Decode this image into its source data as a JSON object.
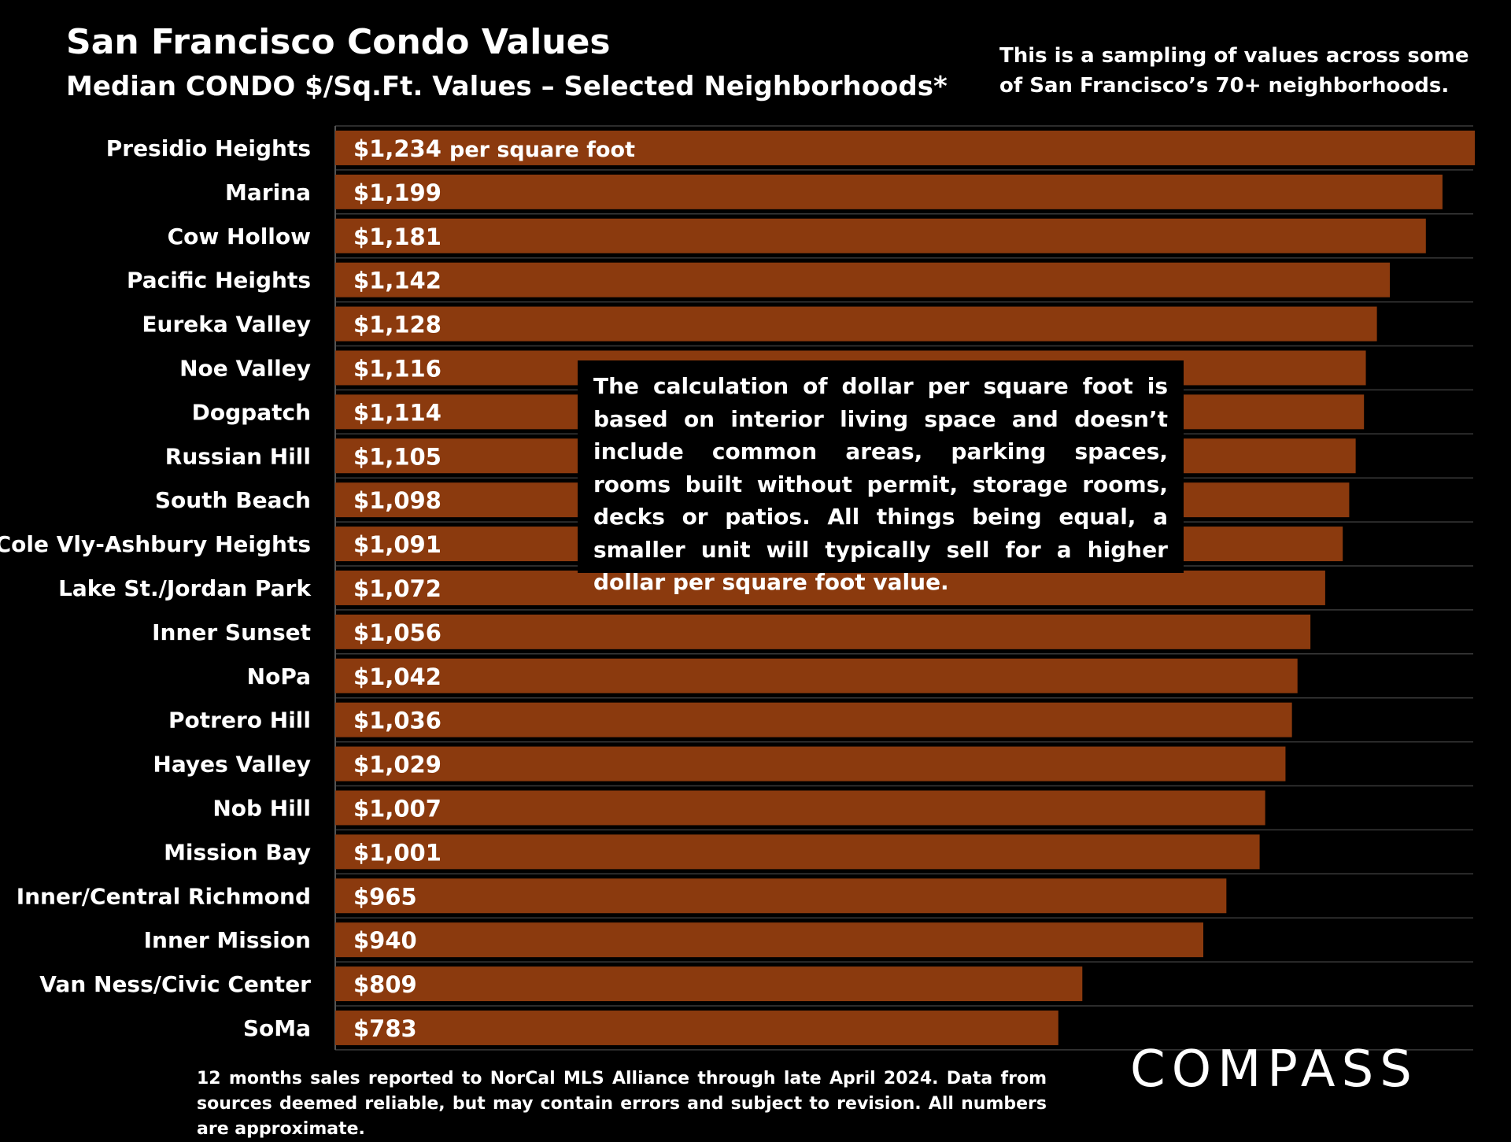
{
  "header": {
    "title": "San Francisco Condo Values",
    "subtitle": "Median CONDO $/Sq.Ft. Values – Selected Neighborhoods*",
    "note": "This is a sampling of values across some of San Francisco’s 70+ neighborhoods."
  },
  "callout": {
    "text": "The calculation of dollar per square foot is based on interior living space and doesn’t include common areas, parking spaces, rooms built without permit, storage rooms, decks or patios. All things being equal, a smaller unit will typically sell for a higher dollar per square foot value."
  },
  "footnote": "12 months sales reported to NorCal MLS Alliance through late April 2024. Data from sources deemed reliable, but may contain errors and subject to revision. All numbers are approximate.",
  "logo": "COMPASS",
  "colors": {
    "bar": "#8B3A0E",
    "background": "#000000",
    "text": "#FFFFFF",
    "grid": "#3a3a3a"
  },
  "chart_data": {
    "type": "bar",
    "orientation": "horizontal",
    "title": "",
    "xlabel": "",
    "ylabel": "",
    "categories": [
      "Presidio Heights",
      "Marina",
      "Cow Hollow",
      "Pacific Heights",
      "Eureka Valley",
      "Noe Valley",
      "Dogpatch",
      "Russian Hill",
      "South Beach",
      "Cole Vly-Ashbury Heights",
      "Lake St./Jordan Park",
      "Inner Sunset",
      "NoPa",
      "Potrero Hill",
      "Hayes Valley",
      "Nob Hill",
      "Mission Bay",
      "Inner/Central Richmond",
      "Inner Mission",
      "Van Ness/Civic Center",
      "SoMa"
    ],
    "values": [
      1234,
      1199,
      1181,
      1142,
      1128,
      1116,
      1114,
      1105,
      1098,
      1091,
      1072,
      1056,
      1042,
      1036,
      1029,
      1007,
      1001,
      965,
      940,
      809,
      783
    ],
    "labels": [
      "$1,234",
      "$1,199",
      "$1,181",
      "$1,142",
      "$1,128",
      "$1,116",
      "$1,114",
      "$1,105",
      "$1,098",
      "$1,091",
      "$1,072",
      "$1,056",
      "$1,042",
      "$1,036",
      "$1,029",
      "$1,007",
      "$1,001",
      "$965",
      "$940",
      "$809",
      "$783"
    ],
    "first_label_suffix": "per square foot",
    "xlim": [
      0,
      1234
    ],
    "grid": true,
    "legend": "none"
  }
}
